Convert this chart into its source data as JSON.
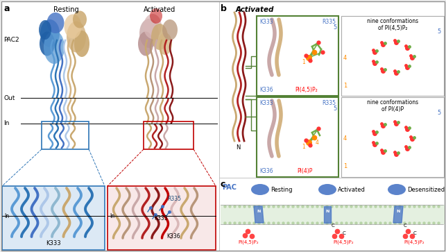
{
  "figure_width": 6.43,
  "figure_height": 3.63,
  "dpi": 100,
  "bg_color": "#e8e8e8",
  "white": "#ffffff",
  "panel_a_title": "a",
  "panel_b_title": "b",
  "panel_c_title": "c",
  "resting_label": "Resting",
  "activated_label": "Activated",
  "pac2_label": "PAC2",
  "out_label": "Out",
  "in_label_a": "In",
  "in_label_inset": "In",
  "k333_label": "K333",
  "k336_label": "K336",
  "r335_label": "R335",
  "pi45p2_label": "PI(4,5)P₂",
  "pi4p_label": "PI(4)P",
  "nine_conf_pi45_line1": "nine conformations",
  "nine_conf_pi45_line2": "of PI(4,5)P₂",
  "nine_conf_pi4_line1": "nine conformations",
  "nine_conf_pi4_line2": "of PI(4)P",
  "resting_c_label": "Resting",
  "activated_c_label": "Activated",
  "desensitized_c_label": "Desensitized",
  "pac_label": "PAC",
  "pi45_label1": "PI(4,5)P₂",
  "pi45_label2": "PI(4,5)P₂",
  "pi45_label3": "PI(4,5)P₂",
  "c_label": "C",
  "n_label": "N",
  "label_5": "5",
  "label_4": "4",
  "label_1": "1",
  "blue_color": "#4472c4",
  "red_color": "#c00000",
  "green_box_color": "#538135",
  "blue_box_color": "#2e75b6",
  "red_box_color": "#c00000",
  "tan_color": "#d4b483",
  "pink_color": "#c9a8a8",
  "dark_red_color": "#8b1a1a",
  "light_blue_color": "#9dc3e6",
  "dark_blue_color": "#1f4e79",
  "membrane_color": "#d9ead3",
  "lipid_color": "#b8d4a8",
  "text_blue": "#4472c4",
  "text_red": "#ff0000",
  "orange_color": "#ff8c00"
}
